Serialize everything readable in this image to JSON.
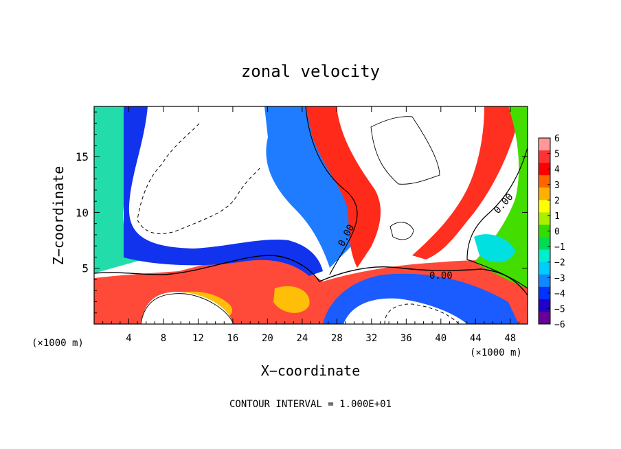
{
  "chart_data": {
    "type": "heatmap",
    "title": "zonal velocity",
    "xlabel": "X−coordinate",
    "ylabel": "Z−coordinate",
    "x_unit_left": "(×1000 m)",
    "x_unit_right": "(×1000 m)",
    "xlim": [
      0,
      50
    ],
    "ylim": [
      0,
      19.5
    ],
    "x_ticks": [
      4,
      8,
      12,
      16,
      20,
      24,
      28,
      32,
      36,
      40,
      44,
      48
    ],
    "x_tick_labels": [
      "4",
      "8",
      "12",
      "16",
      "20",
      "24",
      "28",
      "32",
      "36",
      "40",
      "44",
      "48"
    ],
    "y_ticks": [
      5,
      10,
      15
    ],
    "y_tick_labels": [
      "5",
      "10",
      "15"
    ],
    "colorbar": {
      "min": -6,
      "max": 6,
      "labels": [
        "6",
        "5",
        "4",
        "3",
        "2",
        "1",
        "0",
        "−1",
        "−2",
        "−3",
        "−4",
        "−5",
        "−6"
      ],
      "colors": [
        "#ff9999",
        "#ff3333",
        "#ff0000",
        "#ff6600",
        "#ffb000",
        "#ffff00",
        "#aaee00",
        "#33dd00",
        "#00dd55",
        "#00eecc",
        "#00ccff",
        "#1188ff",
        "#0033ff",
        "#2200cc",
        "#660099"
      ]
    },
    "contour_labels": [
      "0.00",
      "0.00",
      "0.00"
    ],
    "footnote": "CONTOUR INTERVAL = 1.000E+01"
  }
}
